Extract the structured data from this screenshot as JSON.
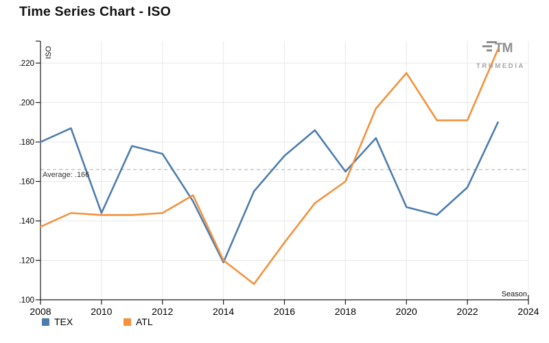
{
  "header": {
    "title": "Time Series Chart - ISO"
  },
  "branding": {
    "logo_mark": "TM",
    "logo_text": "TRUMEDIA"
  },
  "legend": [
    {
      "name": "TEX",
      "color": "#4d7caf"
    },
    {
      "name": "ATL",
      "color": "#f3913c"
    }
  ],
  "chart_data": {
    "type": "line",
    "title": "Time Series Chart - ISO",
    "xlabel": "Season",
    "ylabel": "ISO",
    "x": [
      2008,
      2009,
      2010,
      2011,
      2012,
      2013,
      2014,
      2015,
      2016,
      2017,
      2018,
      2019,
      2020,
      2021,
      2022,
      2023
    ],
    "series": [
      {
        "name": "TEX",
        "color": "#4d7caf",
        "values": [
          0.18,
          0.187,
          0.144,
          0.178,
          0.174,
          0.15,
          0.119,
          0.155,
          0.173,
          0.186,
          0.165,
          0.182,
          0.147,
          0.143,
          0.157,
          0.19
        ]
      },
      {
        "name": "ATL",
        "color": "#f3913c",
        "values": [
          0.137,
          0.144,
          0.143,
          0.143,
          0.144,
          0.153,
          0.12,
          0.108,
          0.129,
          0.149,
          0.16,
          0.197,
          0.215,
          0.191,
          0.191,
          0.227
        ]
      }
    ],
    "average": {
      "value": 0.166,
      "label": "Average: .166"
    },
    "x_ticks": [
      2008,
      2010,
      2012,
      2014,
      2016,
      2018,
      2020,
      2022,
      2024
    ],
    "y_tick_labels": [
      ".100",
      ".120",
      ".140",
      ".160",
      ".180",
      ".200",
      ".220"
    ],
    "xlim": [
      2008,
      2024
    ],
    "ylim": [
      0.1,
      0.22
    ],
    "grid": true,
    "legend_position": "bottom-left"
  }
}
